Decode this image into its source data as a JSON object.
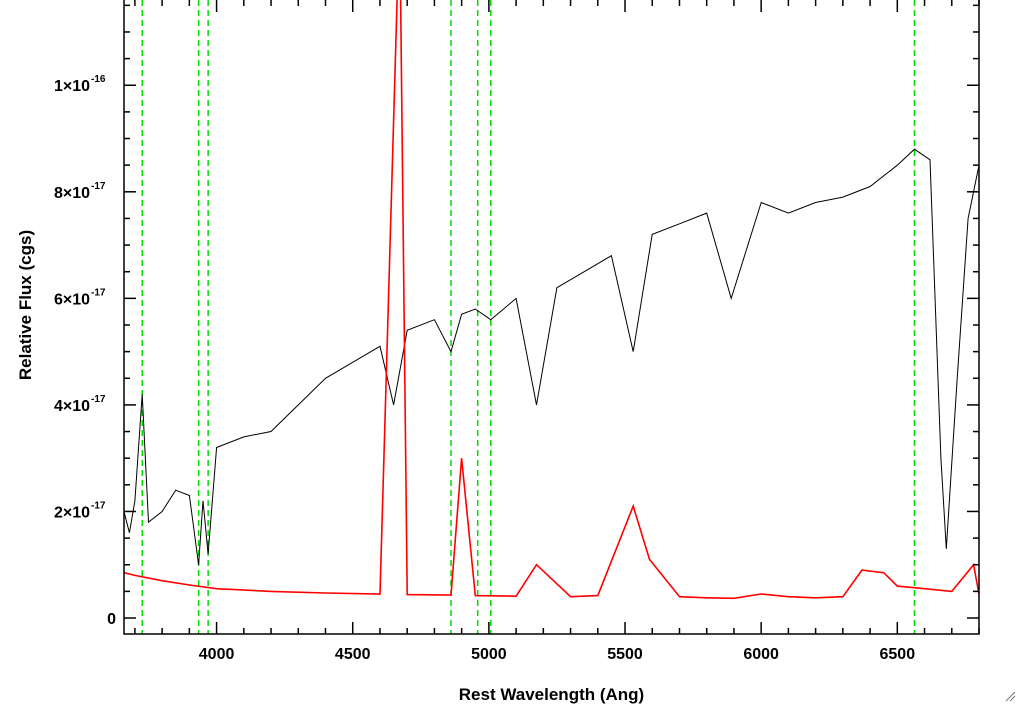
{
  "chart_data": {
    "type": "line",
    "xlabel": "Rest Wavelength (Ang)",
    "ylabel": "Relative Flux (cgs)",
    "xlim": [
      3660,
      6800
    ],
    "ylim": [
      -3e-18,
      1.16e-16
    ],
    "x_ticks": [
      {
        "value": 4000,
        "label": "4000"
      },
      {
        "value": 4500,
        "label": "4500"
      },
      {
        "value": 5000,
        "label": "5000"
      },
      {
        "value": 5500,
        "label": "5500"
      },
      {
        "value": 6000,
        "label": "6000"
      },
      {
        "value": 6500,
        "label": "6500"
      }
    ],
    "y_ticks": [
      {
        "value": 0,
        "label": "0",
        "mant": "",
        "exp": ""
      },
      {
        "value": 2e-17,
        "label": "2×10^-17",
        "mant": "2×10",
        "exp": "-17"
      },
      {
        "value": 4e-17,
        "label": "4×10^-17",
        "mant": "4×10",
        "exp": "-17"
      },
      {
        "value": 6e-17,
        "label": "6×10^-17",
        "mant": "6×10",
        "exp": "-17"
      },
      {
        "value": 8e-17,
        "label": "8×10^-17",
        "mant": "8×10",
        "exp": "-17"
      },
      {
        "value": 1e-16,
        "label": "1×10^-16",
        "mant": "1×10",
        "exp": "-16"
      }
    ],
    "line_markers": [
      3727,
      3934,
      3969,
      4861,
      4959,
      5007,
      6563
    ],
    "series": [
      {
        "color": "#000000",
        "points": [
          [
            3660,
            2e-17
          ],
          [
            3680,
            1.6e-17
          ],
          [
            3700,
            2.2e-17
          ],
          [
            3727,
            4.2e-17
          ],
          [
            3750,
            1.8e-17
          ],
          [
            3800,
            2e-17
          ],
          [
            3850,
            2.4e-17
          ],
          [
            3900,
            2.3e-17
          ],
          [
            3934,
            1e-17
          ],
          [
            3950,
            2.2e-17
          ],
          [
            3969,
            1.2e-17
          ],
          [
            4000,
            3.2e-17
          ],
          [
            4100,
            3.4e-17
          ],
          [
            4200,
            3.5e-17
          ],
          [
            4300,
            4e-17
          ],
          [
            4400,
            4.5e-17
          ],
          [
            4500,
            4.8e-17
          ],
          [
            4600,
            5.1e-17
          ],
          [
            4650,
            4e-17
          ],
          [
            4700,
            5.4e-17
          ],
          [
            4800,
            5.6e-17
          ],
          [
            4861,
            5e-17
          ],
          [
            4900,
            5.7e-17
          ],
          [
            4950,
            5.8e-17
          ],
          [
            5007,
            5.6e-17
          ],
          [
            5100,
            6e-17
          ],
          [
            5175,
            4e-17
          ],
          [
            5250,
            6.2e-17
          ],
          [
            5350,
            6.5e-17
          ],
          [
            5450,
            6.8e-17
          ],
          [
            5530,
            5e-17
          ],
          [
            5600,
            7.2e-17
          ],
          [
            5700,
            7.4e-17
          ],
          [
            5800,
            7.6e-17
          ],
          [
            5890,
            6e-17
          ],
          [
            6000,
            7.8e-17
          ],
          [
            6100,
            7.6e-17
          ],
          [
            6200,
            7.8e-17
          ],
          [
            6300,
            7.9e-17
          ],
          [
            6400,
            8.1e-17
          ],
          [
            6500,
            8.5e-17
          ],
          [
            6563,
            8.8e-17
          ],
          [
            6620,
            8.6e-17
          ],
          [
            6660,
            3e-17
          ],
          [
            6680,
            1.3e-17
          ],
          [
            6720,
            4.5e-17
          ],
          [
            6760,
            7.5e-17
          ],
          [
            6800,
            8.5e-17
          ]
        ]
      },
      {
        "color": "#ff0000",
        "points": [
          [
            3660,
            8.5e-18
          ],
          [
            3700,
            8e-18
          ],
          [
            3800,
            7e-18
          ],
          [
            3900,
            6.2e-18
          ],
          [
            4000,
            5.5e-18
          ],
          [
            4200,
            5e-18
          ],
          [
            4400,
            4.7e-18
          ],
          [
            4600,
            4.5e-18
          ],
          [
            4665,
            1.2e-16
          ],
          [
            4675,
            1.2e-16
          ],
          [
            4700,
            4.4e-18
          ],
          [
            4861,
            4.3e-18
          ],
          [
            4900,
            3e-17
          ],
          [
            4950,
            4.2e-18
          ],
          [
            5100,
            4.1e-18
          ],
          [
            5175,
            1e-17
          ],
          [
            5300,
            4e-18
          ],
          [
            5400,
            4.2e-18
          ],
          [
            5530,
            2.1e-17
          ],
          [
            5590,
            1.1e-17
          ],
          [
            5700,
            4e-18
          ],
          [
            5800,
            3.8e-18
          ],
          [
            5900,
            3.7e-18
          ],
          [
            6000,
            4.5e-18
          ],
          [
            6100,
            4e-18
          ],
          [
            6200,
            3.8e-18
          ],
          [
            6300,
            4e-18
          ],
          [
            6370,
            9e-18
          ],
          [
            6450,
            8.5e-18
          ],
          [
            6500,
            6e-18
          ],
          [
            6600,
            5.5e-18
          ],
          [
            6700,
            5e-18
          ],
          [
            6780,
            1e-17
          ],
          [
            6800,
            4.5e-18
          ]
        ]
      }
    ]
  }
}
